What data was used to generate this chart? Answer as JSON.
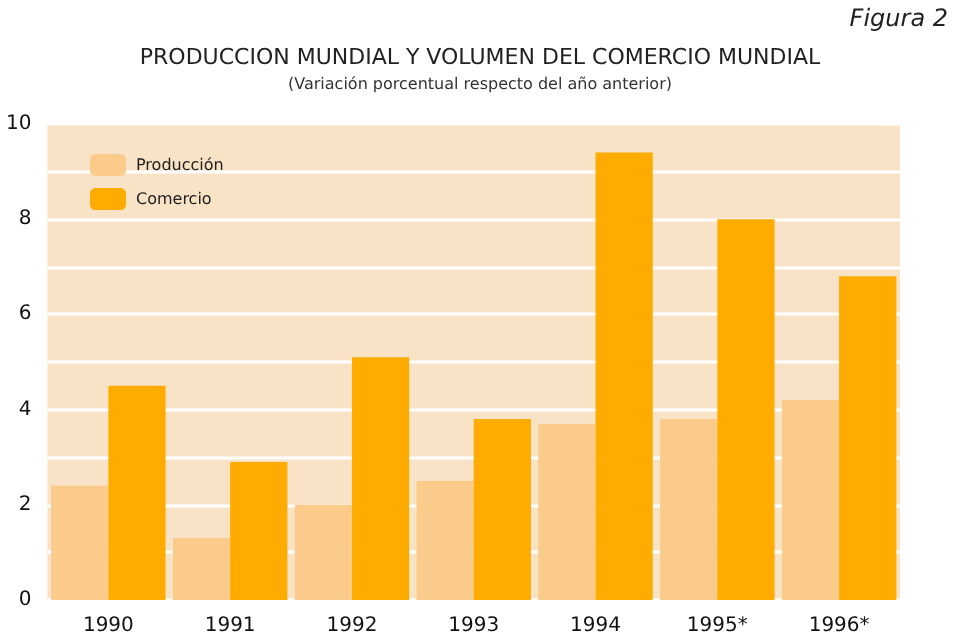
{
  "chart_data": {
    "type": "bar",
    "title": "PRODUCCION MUNDIAL Y VOLUMEN DEL COMERCIO MUNDIAL",
    "subtitle": "(Variación porcentual respecto del año anterior)",
    "annotations": [
      "Figura 2"
    ],
    "categories": [
      "1990",
      "1991",
      "1992",
      "1993",
      "1994",
      "1995*",
      "1996*"
    ],
    "series": [
      {
        "name": "Producción",
        "color": "#fbcb8c",
        "values": [
          2.4,
          1.3,
          2.0,
          2.5,
          3.7,
          3.8,
          4.2
        ]
      },
      {
        "name": "Comercio",
        "color": "#ffab00",
        "values": [
          4.5,
          2.9,
          5.1,
          3.8,
          9.4,
          8.0,
          6.8
        ]
      }
    ],
    "ylim": [
      0,
      10
    ],
    "yticks": [
      0,
      {
        "value": 1,
        "label": null
      },
      2,
      {
        "value": 3,
        "label": null
      },
      4,
      {
        "value": 5,
        "label": null
      },
      6,
      {
        "value": 7,
        "label": null
      },
      8,
      {
        "value": 9,
        "label": null
      },
      10
    ],
    "grid": "y",
    "legend": "top left"
  }
}
